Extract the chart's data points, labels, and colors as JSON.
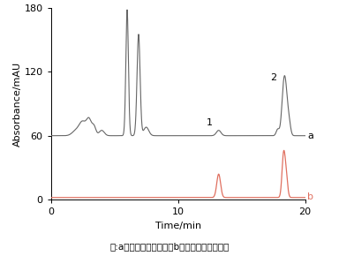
{
  "xlim": [
    0,
    20
  ],
  "ylim": [
    0,
    180
  ],
  "xticks": [
    0,
    10,
    20
  ],
  "yticks": [
    0,
    60,
    120,
    180
  ],
  "xlabel": "Time/min",
  "ylabel": "Absorbance/mAU",
  "caption": "注:a为样品溶液色谱图，b为标准溶液色谱图。",
  "label_a": "a",
  "label_b": "b",
  "color_a": "#666666",
  "color_b": "#E07060",
  "baseline_a": 60,
  "baseline_b": 2,
  "peak1_label": "1",
  "peak2_label": "2",
  "background": "#ffffff"
}
